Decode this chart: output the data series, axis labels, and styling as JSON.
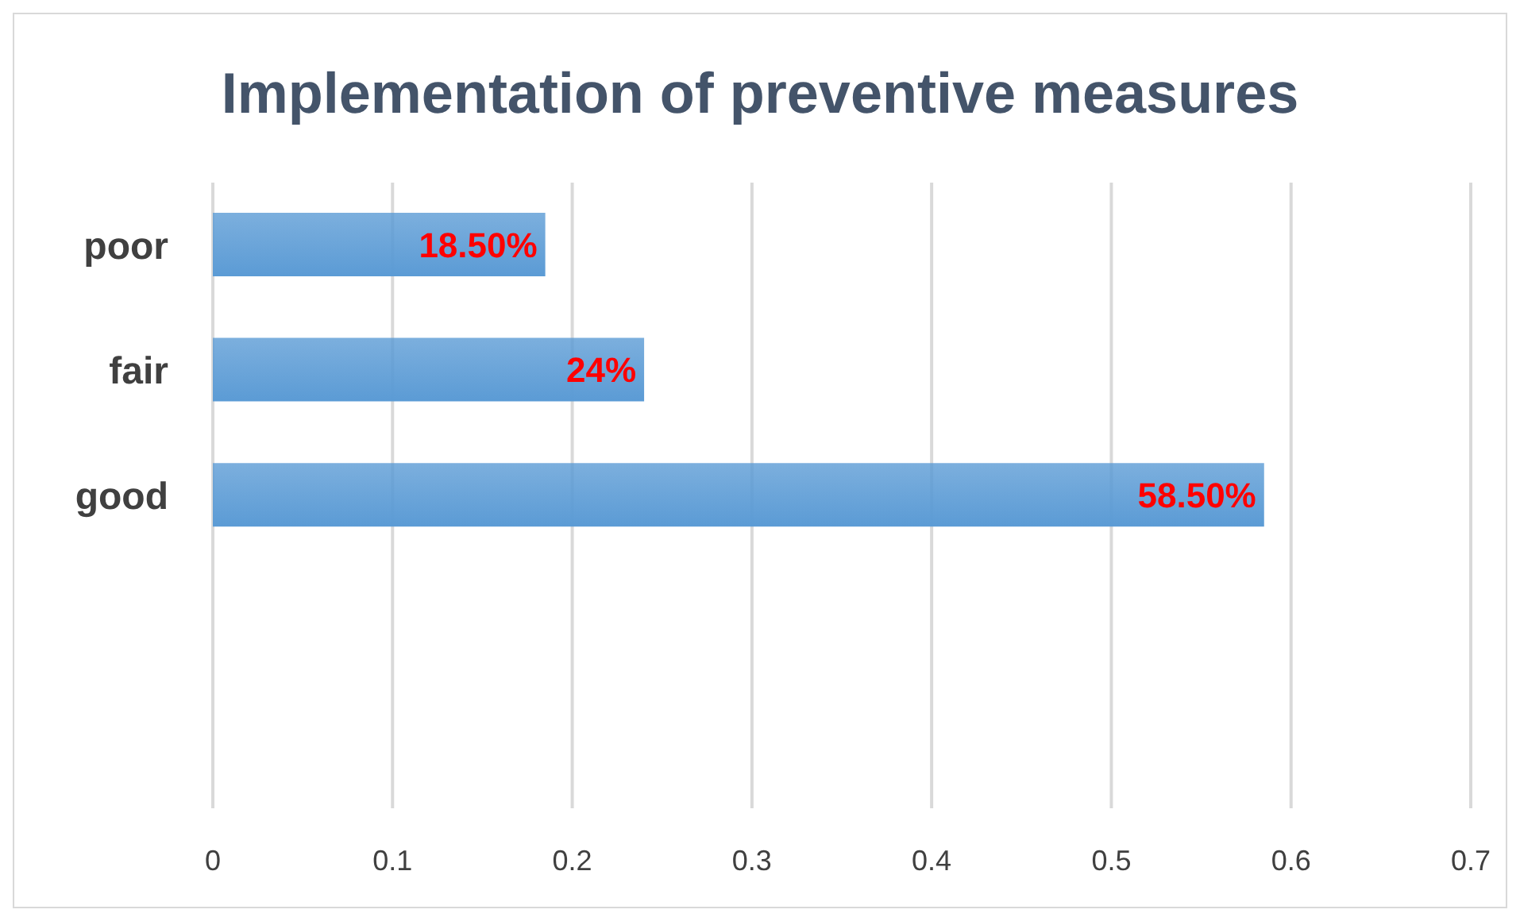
{
  "chart_data": {
    "type": "bar",
    "orientation": "horizontal",
    "title": "Implementation of preventive measures",
    "categories": [
      "poor",
      "fair",
      "good",
      null,
      null
    ],
    "values": [
      0.185,
      0.24,
      0.585,
      null,
      null
    ],
    "value_labels": [
      "18.50%",
      "24%",
      "58.50%",
      null,
      null
    ],
    "color": "#5b9bd5",
    "xlim": [
      0,
      0.7
    ],
    "xticks": [
      0,
      0.1,
      0.2,
      0.3,
      0.4,
      0.5,
      0.6,
      0.7
    ],
    "grid": "x",
    "legend": false
  }
}
